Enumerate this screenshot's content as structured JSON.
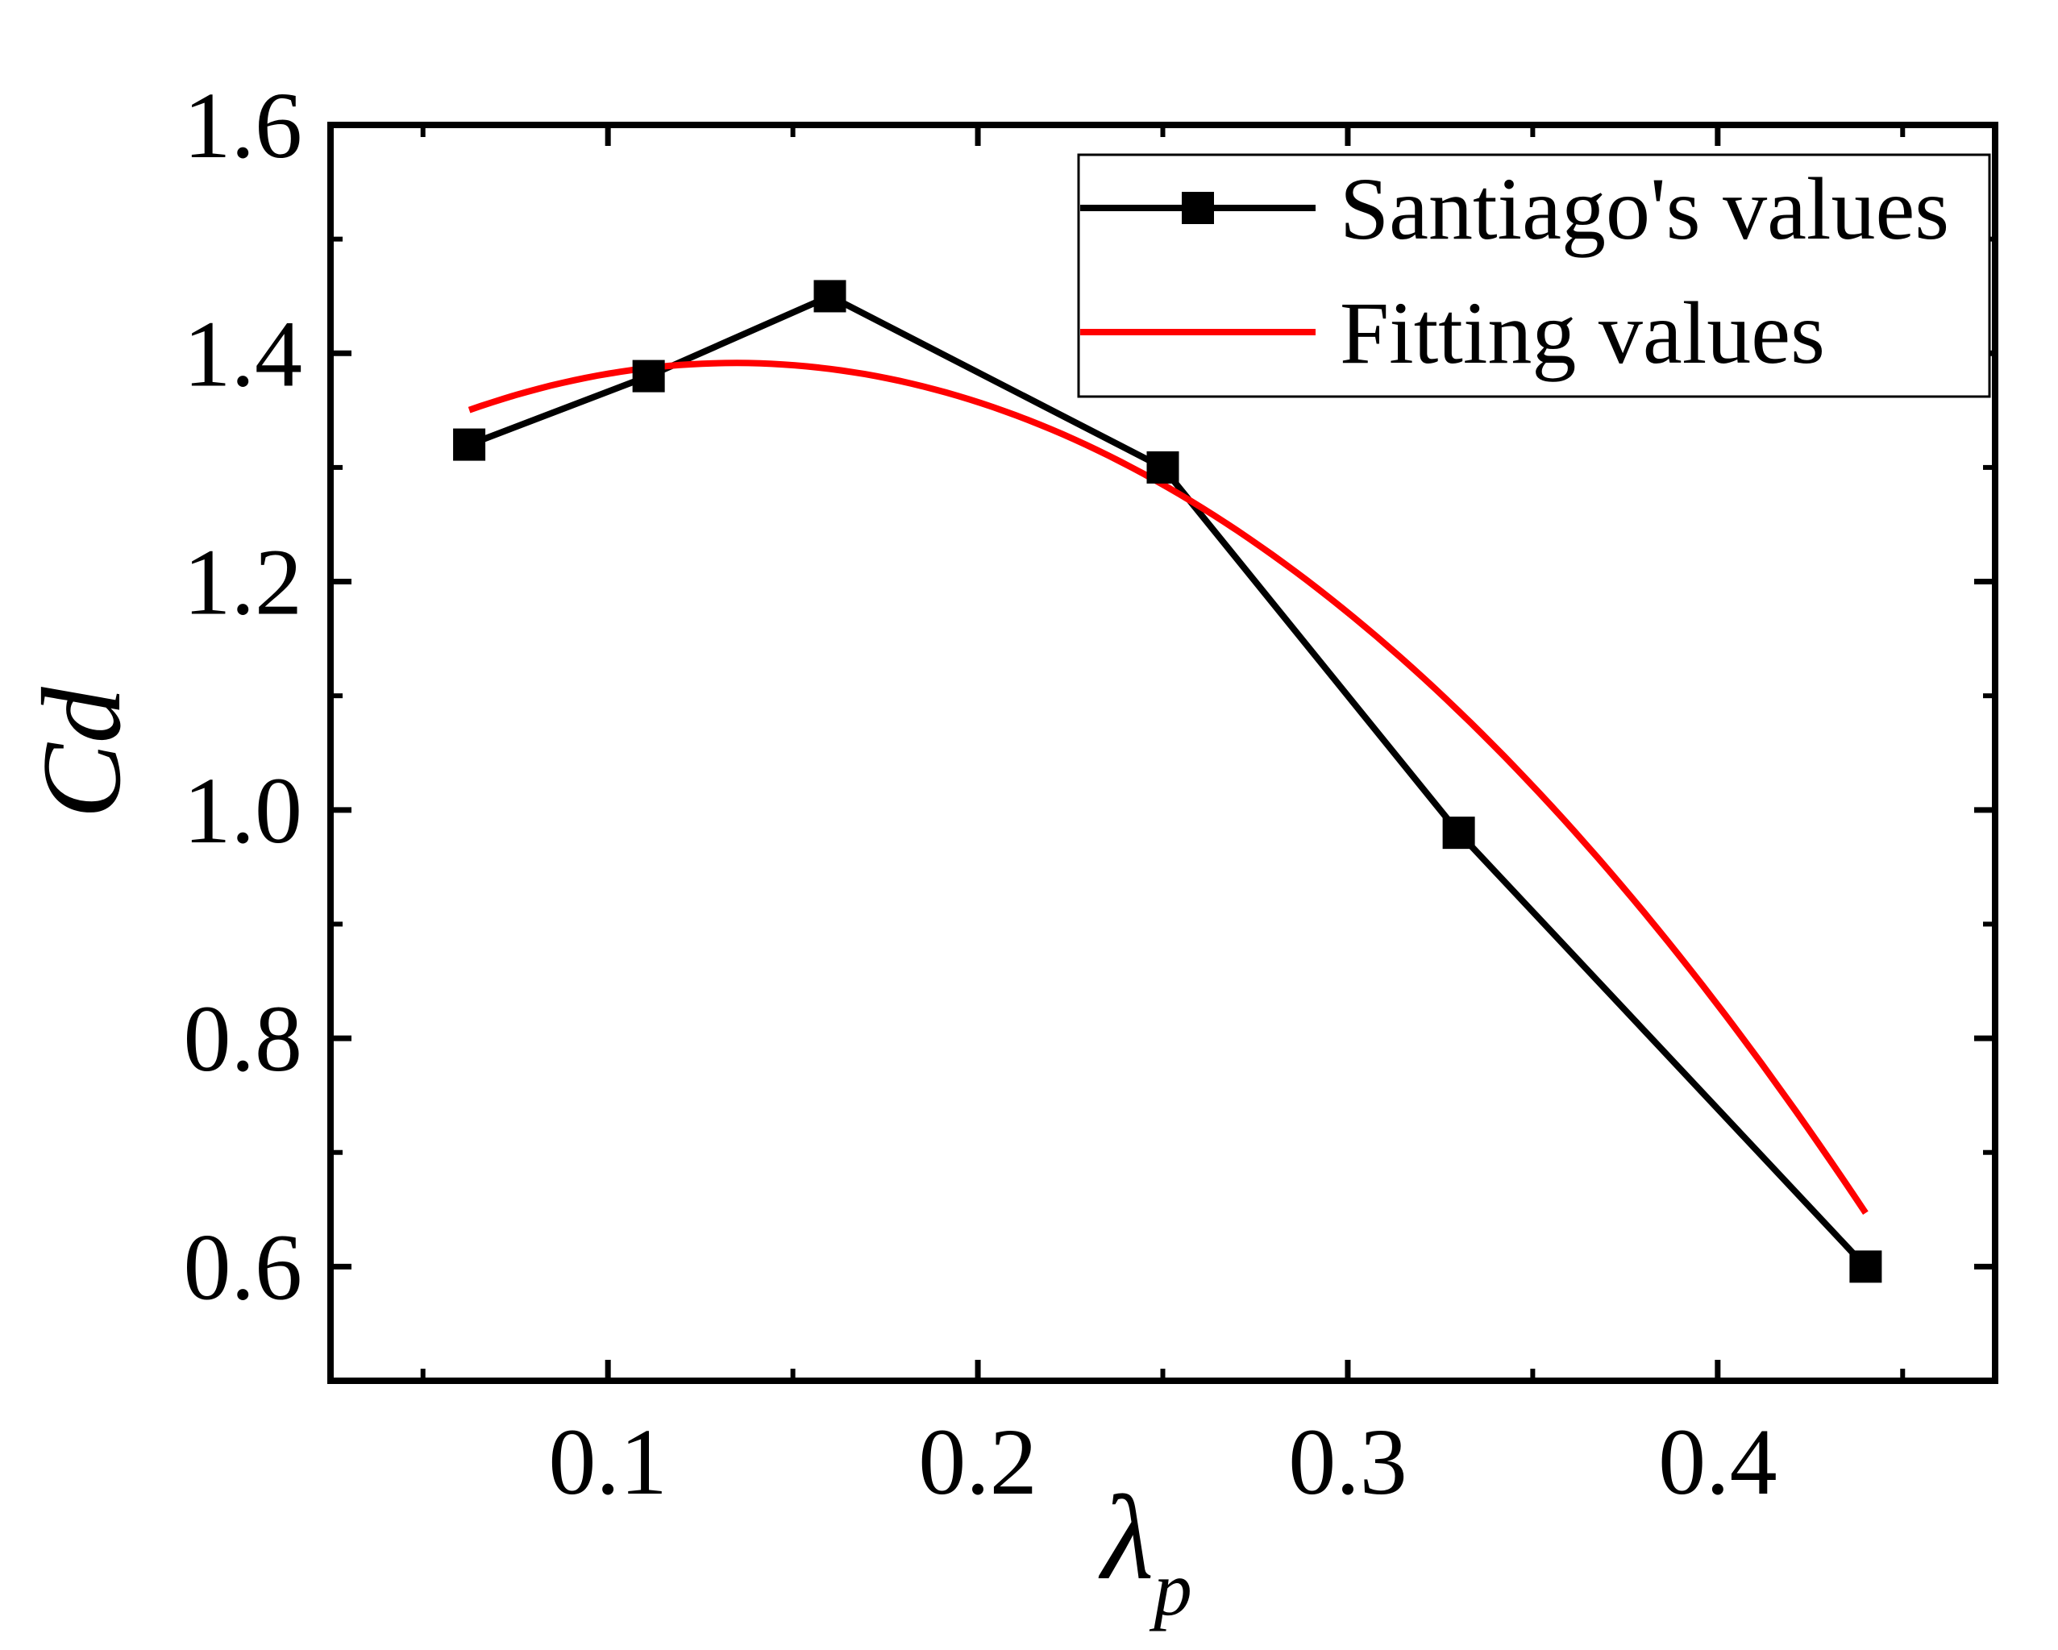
{
  "chart_data": {
    "type": "line",
    "title": "",
    "xlabel": "λ",
    "xlabel_subscript": "p",
    "ylabel": "Cd",
    "xlim": [
      0.025,
      0.475
    ],
    "ylim": [
      0.5,
      1.6
    ],
    "xticks": [
      0.1,
      0.2,
      0.3,
      0.4
    ],
    "xtick_labels": [
      "0.1",
      "0.2",
      "0.3",
      "0.4"
    ],
    "xminor": [
      0.05,
      0.15,
      0.25,
      0.35,
      0.45
    ],
    "yticks": [
      0.6,
      0.8,
      1.0,
      1.2,
      1.4,
      1.6
    ],
    "ytick_labels": [
      "0.6",
      "0.8",
      "1.0",
      "1.2",
      "1.4",
      "1.6"
    ],
    "yminor": [
      0.5,
      0.7,
      0.9,
      1.1,
      1.3,
      1.5
    ],
    "grid": false,
    "legend_position": "top-right",
    "series": [
      {
        "name": "Santiago's values",
        "style": "line-square-markers",
        "color": "#000000",
        "x": [
          0.0625,
          0.111,
          0.16,
          0.25,
          0.33,
          0.44
        ],
        "y": [
          1.32,
          1.38,
          1.45,
          1.3,
          0.98,
          0.6
        ]
      },
      {
        "name": "Fitting values",
        "style": "smooth-line",
        "color": "#ff0000",
        "fit_coefficients_quadratic": [
          1.2474,
          2.144,
          -7.974
        ],
        "x_range": [
          0.0625,
          0.44
        ]
      }
    ]
  }
}
